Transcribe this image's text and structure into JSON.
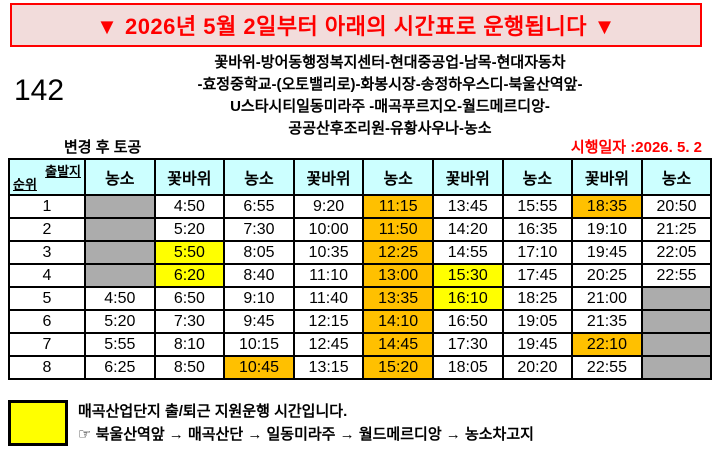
{
  "banner": {
    "text": "▼ 2026년 5월 2일부터 아래의 시간표로 운행됩니다 ▼"
  },
  "route_number": "142",
  "route_lines": [
    "꽃바위-방어동행정복지센터-현대중공업-남목-현대자동차",
    "-효정중학교-(오토밸리로)-화봉시장-송정하우스디-북울산역앞-",
    "U스타시티일동미라주 -매곡푸르지오-월드메르디앙-",
    "공공산후조리원-유황사우나-농소"
  ],
  "subheader": {
    "left": "변경 후 토공",
    "right": "시행일자 :2026. 5. 2"
  },
  "table": {
    "corner": {
      "top": "출발지",
      "bottom": "순위"
    },
    "columns": [
      "농소",
      "꽃바위",
      "농소",
      "꽃바위",
      "농소",
      "꽃바위",
      "농소",
      "꽃바위",
      "농소"
    ],
    "rows": [
      {
        "rank": "1",
        "cells": [
          {
            "v": "",
            "bg": "gray"
          },
          {
            "v": "4:50"
          },
          {
            "v": "6:55"
          },
          {
            "v": "9:20"
          },
          {
            "v": "11:15",
            "bg": "orange"
          },
          {
            "v": "13:45"
          },
          {
            "v": "15:55"
          },
          {
            "v": "18:35",
            "bg": "orange"
          },
          {
            "v": "20:50"
          }
        ]
      },
      {
        "rank": "2",
        "cells": [
          {
            "v": "",
            "bg": "gray"
          },
          {
            "v": "5:20"
          },
          {
            "v": "7:30"
          },
          {
            "v": "10:00"
          },
          {
            "v": "11:50",
            "bg": "orange"
          },
          {
            "v": "14:20"
          },
          {
            "v": "16:35"
          },
          {
            "v": "19:10"
          },
          {
            "v": "21:25"
          }
        ]
      },
      {
        "rank": "3",
        "cells": [
          {
            "v": "",
            "bg": "gray"
          },
          {
            "v": "5:50",
            "bg": "yellow"
          },
          {
            "v": "8:05"
          },
          {
            "v": "10:35"
          },
          {
            "v": "12:25",
            "bg": "orange"
          },
          {
            "v": "14:55"
          },
          {
            "v": "17:10"
          },
          {
            "v": "19:45"
          },
          {
            "v": "22:05"
          }
        ]
      },
      {
        "rank": "4",
        "cells": [
          {
            "v": "",
            "bg": "gray"
          },
          {
            "v": "6:20",
            "bg": "yellow"
          },
          {
            "v": "8:40"
          },
          {
            "v": "11:10"
          },
          {
            "v": "13:00",
            "bg": "orange"
          },
          {
            "v": "15:30",
            "bg": "yellow"
          },
          {
            "v": "17:45"
          },
          {
            "v": "20:25"
          },
          {
            "v": "22:55"
          }
        ]
      },
      {
        "rank": "5",
        "cells": [
          {
            "v": "4:50"
          },
          {
            "v": "6:50"
          },
          {
            "v": "9:10"
          },
          {
            "v": "11:40"
          },
          {
            "v": "13:35",
            "bg": "orange"
          },
          {
            "v": "16:10",
            "bg": "yellow"
          },
          {
            "v": "18:25"
          },
          {
            "v": "21:00"
          },
          {
            "v": "",
            "bg": "gray"
          }
        ]
      },
      {
        "rank": "6",
        "cells": [
          {
            "v": "5:20"
          },
          {
            "v": "7:30"
          },
          {
            "v": "9:45"
          },
          {
            "v": "12:15"
          },
          {
            "v": "14:10",
            "bg": "orange"
          },
          {
            "v": "16:50"
          },
          {
            "v": "19:05"
          },
          {
            "v": "21:35"
          },
          {
            "v": "",
            "bg": "gray"
          }
        ]
      },
      {
        "rank": "7",
        "cells": [
          {
            "v": "5:55"
          },
          {
            "v": "8:10"
          },
          {
            "v": "10:15"
          },
          {
            "v": "12:45"
          },
          {
            "v": "14:45",
            "bg": "orange"
          },
          {
            "v": "17:30"
          },
          {
            "v": "19:45"
          },
          {
            "v": "22:10",
            "bg": "orange"
          },
          {
            "v": "",
            "bg": "gray"
          }
        ]
      },
      {
        "rank": "8",
        "cells": [
          {
            "v": "6:25"
          },
          {
            "v": "8:50"
          },
          {
            "v": "10:45",
            "bg": "orange"
          },
          {
            "v": "13:15"
          },
          {
            "v": "15:20",
            "bg": "orange"
          },
          {
            "v": "18:05"
          },
          {
            "v": "20:20"
          },
          {
            "v": "22:55"
          },
          {
            "v": "",
            "bg": "gray"
          }
        ]
      }
    ]
  },
  "legend": {
    "swatch_color": "#FFFF00",
    "line1": "매곡산업단지 출/퇴근 지원운행 시간입니다.",
    "line2": "☞ 북울산역앞 → 매곡산단 → 일동미라주 → 월드메르디앙 → 농소차고지"
  },
  "colors": {
    "banner_bg": "#F2DCDB",
    "banner_text": "#FF0000",
    "header_bg": "#CCFFFF",
    "highlight_orange": "#FFC000",
    "highlight_yellow": "#FFFF00",
    "no_service_gray": "#ACACAC"
  }
}
